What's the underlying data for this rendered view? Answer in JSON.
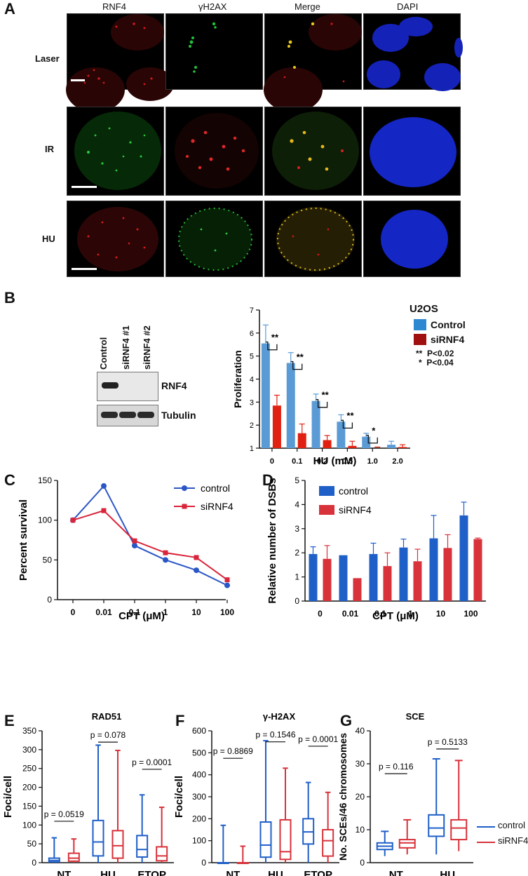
{
  "panel_letters": {
    "a": "A",
    "b": "B",
    "c": "C",
    "d": "D",
    "e": "E",
    "f": "F",
    "g": "G"
  },
  "panel_a": {
    "col_headers": [
      "RNF4",
      "γH2AX",
      "Merge",
      "DAPI"
    ],
    "row_labels": [
      "Laser",
      "IR",
      "HU"
    ]
  },
  "panel_b": {
    "blot_lanes": [
      "Control",
      "siRNF4 #1",
      "siRNF4 #2"
    ],
    "blot_bands": [
      "RNF4",
      "Tubulin"
    ],
    "legend_title": "U2OS",
    "sig1": "**  P<0.02",
    "sig2": "*  P<0.04",
    "colors": {
      "control": "#5b9bd5",
      "sirnf4": "#e02010",
      "control_legend": "#2e88d1",
      "sirnf4_legend": "#a01010"
    }
  },
  "chart_data": [
    {
      "panel": "B",
      "type": "bar",
      "xlabel": "HU (mM)",
      "ylabel": "Proliferation",
      "categories": [
        "0",
        "0.1",
        "0.2",
        "0.5",
        "1.0",
        "2.0"
      ],
      "ylim": [
        1,
        7
      ],
      "yticks": [
        "1",
        "2",
        "3",
        "4",
        "5",
        "6",
        "7"
      ],
      "series": [
        {
          "name": "Control",
          "values": [
            5.55,
            4.7,
            3.05,
            2.15,
            1.5,
            1.15
          ],
          "err": [
            0.8,
            0.45,
            0.3,
            0.3,
            0.15,
            0.15
          ]
        },
        {
          "name": "siRNF4",
          "values": [
            2.85,
            1.65,
            1.35,
            1.1,
            1.0,
            1.05
          ],
          "err": [
            0.45,
            0.4,
            0.2,
            0.2,
            0.05,
            0.1
          ]
        }
      ],
      "annotations": [
        "**",
        "**",
        "**",
        "**",
        "*"
      ]
    },
    {
      "panel": "C",
      "type": "line",
      "xlabel": "CPT (μM)",
      "ylabel": "Percent survival",
      "categories": [
        "0",
        "0.01",
        "0.1",
        "1",
        "10",
        "100"
      ],
      "ylim": [
        0,
        150
      ],
      "yticks": [
        "0",
        "50",
        "100",
        "150"
      ],
      "series": [
        {
          "name": "control",
          "values": [
            100,
            143,
            68,
            50,
            37,
            18
          ]
        },
        {
          "name": "siRNF4",
          "values": [
            100,
            112,
            74,
            59,
            53,
            25
          ]
        }
      ]
    },
    {
      "panel": "D",
      "type": "bar",
      "xlabel": "CPT (μM)",
      "ylabel": "Relative number of DSBs",
      "categories": [
        "0",
        "0.01",
        "0.1",
        "1",
        "10",
        "100"
      ],
      "ylim": [
        0,
        5
      ],
      "yticks": [
        "0",
        "1",
        "2",
        "3",
        "4",
        "5"
      ],
      "series": [
        {
          "name": "control",
          "values": [
            1.95,
            1.9,
            1.95,
            2.22,
            2.6,
            3.55
          ],
          "err": [
            0.3,
            0,
            0.45,
            0.35,
            0.95,
            0.55
          ]
        },
        {
          "name": "siRNF4",
          "values": [
            1.75,
            0.95,
            1.45,
            1.65,
            2.2,
            2.57
          ],
          "err": [
            0.55,
            0,
            0.55,
            0.5,
            0.55,
            0.04
          ]
        }
      ]
    },
    {
      "panel": "E",
      "type": "box",
      "title": "RAD51",
      "ylabel": "Foci/cell",
      "categories": [
        "NT",
        "HU",
        "ETOP"
      ],
      "ylim": [
        0,
        350
      ],
      "yticks": [
        "0",
        "50",
        "100",
        "150",
        "200",
        "250",
        "300",
        "350"
      ],
      "series": [
        {
          "name": "control",
          "boxes": [
            [
              0,
              2,
              6,
              12,
              66
            ],
            [
              0,
              18,
              55,
              112,
              312
            ],
            [
              0,
              15,
              35,
              72,
              180
            ]
          ]
        },
        {
          "name": "siRNF4",
          "boxes": [
            [
              0,
              4,
              12,
              25,
              63
            ],
            [
              0,
              12,
              45,
              85,
              298
            ],
            [
              0,
              5,
              18,
              42,
              147
            ]
          ]
        }
      ],
      "pvalues": [
        "p = 0.0519",
        "p = 0.078",
        "p = 0.0001"
      ]
    },
    {
      "panel": "F",
      "type": "box",
      "title": "γ-H2AX",
      "ylabel": "Foci/cell",
      "categories": [
        "NT",
        "HU",
        "ETOP"
      ],
      "ylim": [
        0,
        600
      ],
      "yticks": [
        "0",
        "100",
        "200",
        "300",
        "400",
        "500",
        "600"
      ],
      "series": [
        {
          "name": "control",
          "boxes": [
            [
              0,
              0,
              0,
              0,
              170
            ],
            [
              0,
              25,
              80,
              185,
              555
            ],
            [
              0,
              85,
              140,
              200,
              365
            ]
          ]
        },
        {
          "name": "siRNF4",
          "boxes": [
            [
              0,
              0,
              0,
              0,
              75
            ],
            [
              0,
              15,
              50,
              195,
              430
            ],
            [
              0,
              30,
              100,
              150,
              320
            ]
          ]
        }
      ],
      "pvalues": [
        "p = 0.8869",
        "p = 0.1546",
        "p = 0.0001"
      ]
    },
    {
      "panel": "G",
      "type": "box",
      "title": "SCE",
      "ylabel": "No. SCEs/46 chromosomes",
      "categories": [
        "NT",
        "HU"
      ],
      "ylim": [
        0,
        40
      ],
      "yticks": [
        "0",
        "10",
        "20",
        "30",
        "40"
      ],
      "series": [
        {
          "name": "control",
          "boxes": [
            [
              2,
              4,
              5,
              6,
              9.5
            ],
            [
              2.5,
              8,
              10.5,
              14.5,
              31.5
            ]
          ]
        },
        {
          "name": "siRNF4",
          "boxes": [
            [
              2.5,
              4.5,
              6,
              7,
              13
            ],
            [
              3.5,
              7,
              10.5,
              13,
              31
            ]
          ]
        }
      ],
      "pvalues": [
        "p = 0.116",
        "p = 0.5133"
      ]
    }
  ],
  "legend_g": [
    "control",
    "siRNF4"
  ],
  "colors": {
    "blue": "#1f5fc8",
    "red": "#d8323a",
    "line_blue": "#2a56c6",
    "line_red": "#d9243a"
  }
}
